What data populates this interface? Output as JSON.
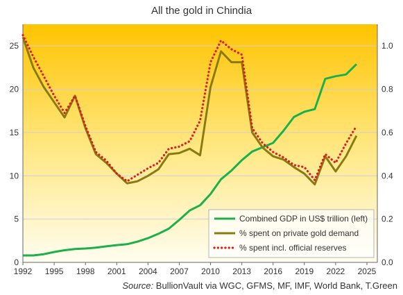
{
  "chart_data": {
    "type": "line",
    "title": "All the gold in Chindia",
    "source_label": "Source:",
    "source_text": "BullionVault via WGC, GFMS, MF, IMF, World Bank, T.Green",
    "x_ticks": [
      "1992",
      "1995",
      "1998",
      "2001",
      "2004",
      "2007",
      "2010",
      "2013",
      "2016",
      "2019",
      "2022",
      "2025"
    ],
    "y_left": {
      "range": [
        0,
        27.5
      ],
      "ticks": [
        "0",
        "5",
        "10",
        "15",
        "20",
        "25"
      ]
    },
    "y_right": {
      "range": [
        0,
        1.1
      ],
      "ticks": [
        "0.0",
        "0.2",
        "0.4",
        "0.6",
        "0.8",
        "1.0"
      ]
    },
    "legend_position": "bottom-right",
    "background": "gradient-yellow",
    "colors": {
      "gdp": "#1ab04c",
      "private": "#8a7a12",
      "official": "#e01a1a"
    },
    "series": [
      {
        "name": "Combined GDP in US$ trillion (left)",
        "axis": "left",
        "style": "solid",
        "x": [
          1992,
          1993,
          1994,
          1995,
          1996,
          1997,
          1998,
          1999,
          2000,
          2001,
          2002,
          2003,
          2004,
          2005,
          2006,
          2007,
          2008,
          2009,
          2010,
          2011,
          2012,
          2013,
          2014,
          2015,
          2016,
          2017,
          2018,
          2019,
          2020,
          2021,
          2022,
          2023,
          2024
        ],
        "values": [
          0.8,
          0.8,
          0.95,
          1.2,
          1.4,
          1.55,
          1.6,
          1.7,
          1.85,
          2.0,
          2.1,
          2.4,
          2.8,
          3.3,
          3.9,
          4.9,
          6.0,
          6.6,
          7.9,
          9.6,
          10.6,
          11.8,
          12.8,
          13.3,
          13.8,
          15.2,
          16.8,
          17.4,
          17.7,
          21.2,
          21.5,
          21.7,
          22.9
        ]
      },
      {
        "name": "% spent on private gold demand",
        "axis": "right",
        "style": "solid",
        "x": [
          1992,
          1993,
          1994,
          1995,
          1996,
          1997,
          1998,
          1999,
          2000,
          2001,
          2002,
          2003,
          2004,
          2005,
          2006,
          2007,
          2008,
          2009,
          2010,
          2011,
          2012,
          2013,
          2014,
          2015,
          2016,
          2017,
          2018,
          2019,
          2020,
          2021,
          2022,
          2023,
          2024
        ],
        "values": [
          1.04,
          0.9,
          0.81,
          0.74,
          0.67,
          0.77,
          0.62,
          0.5,
          0.46,
          0.41,
          0.365,
          0.375,
          0.4,
          0.43,
          0.5,
          0.505,
          0.525,
          0.495,
          0.81,
          0.975,
          0.925,
          0.925,
          0.6,
          0.53,
          0.49,
          0.475,
          0.44,
          0.41,
          0.36,
          0.49,
          0.42,
          0.49,
          0.585
        ]
      },
      {
        "name": "% spent incl. official reserves",
        "axis": "right",
        "style": "dotted",
        "x": [
          1992,
          1993,
          1994,
          1995,
          1996,
          1997,
          1998,
          1999,
          2000,
          2001,
          2002,
          2003,
          2004,
          2005,
          2006,
          2007,
          2008,
          2009,
          2010,
          2011,
          2012,
          2013,
          2014,
          2015,
          2016,
          2017,
          2018,
          2019,
          2020,
          2021,
          2022,
          2023,
          2024
        ],
        "values": [
          1.05,
          0.95,
          0.86,
          0.77,
          0.69,
          0.77,
          0.63,
          0.51,
          0.47,
          0.41,
          0.375,
          0.405,
          0.435,
          0.46,
          0.525,
          0.535,
          0.56,
          0.655,
          0.925,
          1.025,
          0.985,
          0.96,
          0.62,
          0.55,
          0.51,
          0.485,
          0.45,
          0.44,
          0.38,
          0.5,
          0.46,
          0.55,
          0.63
        ]
      }
    ]
  }
}
